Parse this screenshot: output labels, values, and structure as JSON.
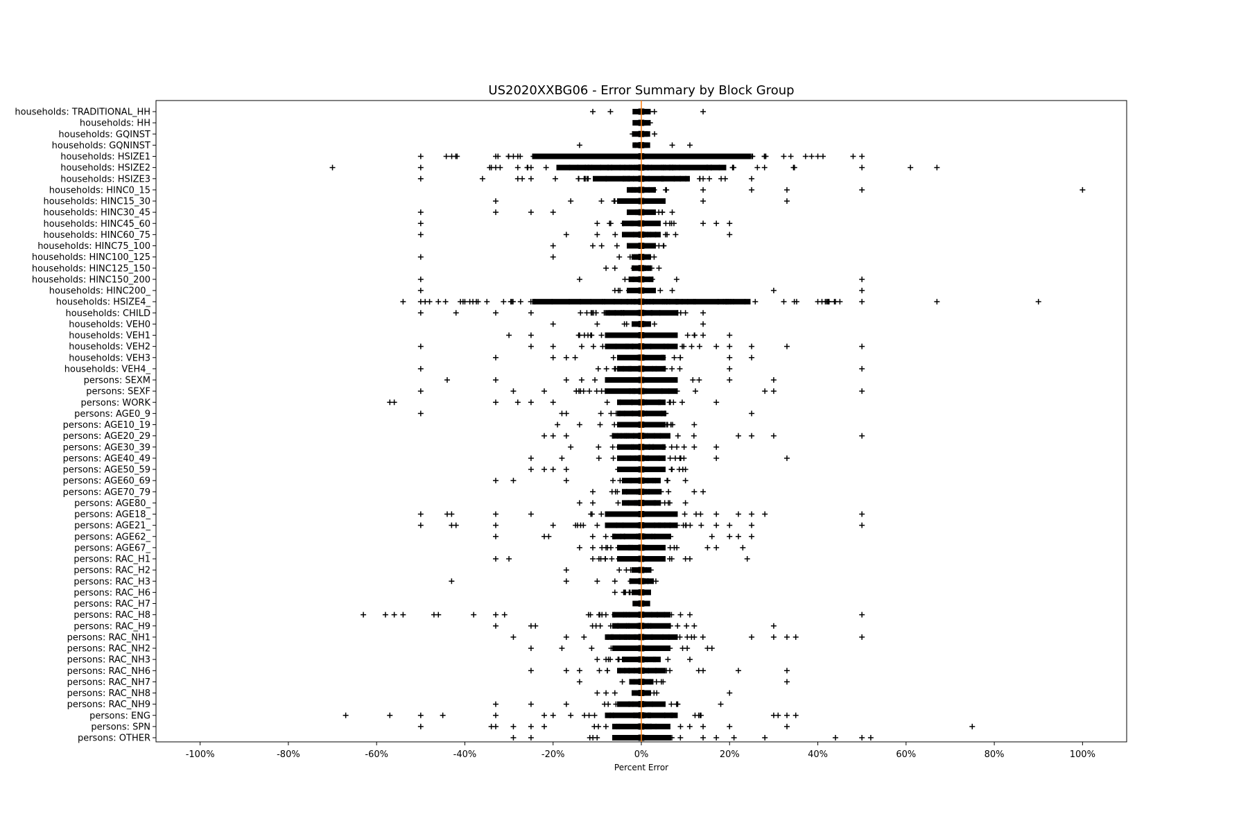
{
  "chart_data": {
    "type": "boxplot",
    "title": "US2020XXBG06 - Error Summary by Block Group",
    "xlabel": "Percent Error",
    "ylabel": "",
    "xlim": [
      -110,
      110
    ],
    "x_ticks": [
      -100,
      -80,
      -60,
      -40,
      -20,
      0,
      20,
      40,
      60,
      80,
      100
    ],
    "x_tick_labels": [
      "-100%",
      "-80%",
      "-60%",
      "-40%",
      "-20%",
      "0%",
      "20%",
      "40%",
      "60%",
      "80%",
      "100%"
    ],
    "grid": false,
    "median_color": "#ff7f0e",
    "categories": [
      {
        "label": "households: TRADITIONAL_HH",
        "spread": 3,
        "outliers": [
          -11,
          -7,
          2,
          14
        ]
      },
      {
        "label": "households: HH",
        "spread": 1,
        "outliers": [
          1,
          2
        ]
      },
      {
        "label": "households: GQINST",
        "spread": 2,
        "outliers": [
          -2,
          3
        ]
      },
      {
        "label": "households: GQNINST",
        "spread": 3,
        "outliers": [
          -14,
          7,
          11
        ]
      },
      {
        "label": "households: HSIZE1",
        "spread": 45,
        "outliers": [
          -50,
          -33,
          -29,
          -28,
          -20,
          -18,
          -16,
          40,
          48,
          50
        ]
      },
      {
        "label": "households: HSIZE2",
        "spread": 35,
        "outliers": [
          -70,
          -50,
          -33,
          -32,
          -28,
          -25,
          50,
          61,
          67
        ]
      },
      {
        "label": "households: HSIZE3",
        "spread": 20,
        "outliers": [
          -50,
          -36,
          -28,
          -27,
          -25,
          14,
          19,
          25
        ]
      },
      {
        "label": "households: HINC0_15",
        "spread": 6,
        "outliers": [
          14,
          25,
          33,
          50,
          100
        ]
      },
      {
        "label": "households: HINC15_30",
        "spread": 10,
        "outliers": [
          -33,
          -16,
          14,
          33
        ]
      },
      {
        "label": "households: HINC30_45",
        "spread": 6,
        "outliers": [
          -50,
          -33,
          -25,
          -20,
          7
        ]
      },
      {
        "label": "households: HINC45_60",
        "spread": 8,
        "outliers": [
          -50,
          -10,
          14,
          17,
          20
        ]
      },
      {
        "label": "households: HINC60_75",
        "spread": 8,
        "outliers": [
          -50,
          -17,
          -10,
          20
        ]
      },
      {
        "label": "households: HINC75_100",
        "spread": 6,
        "outliers": [
          -20,
          -11,
          -9,
          5
        ]
      },
      {
        "label": "households: HINC100_125",
        "spread": 4,
        "outliers": [
          -50,
          -20,
          -5
        ]
      },
      {
        "label": "households: HINC125_150",
        "spread": 4,
        "outliers": [
          -8,
          -6,
          4
        ]
      },
      {
        "label": "households: HINC150_200",
        "spread": 5,
        "outliers": [
          -50,
          -14,
          8,
          50
        ]
      },
      {
        "label": "households: HINC200_",
        "spread": 6,
        "outliers": [
          -50,
          -6,
          7,
          30,
          50
        ]
      },
      {
        "label": "households: HSIZE4_",
        "spread": 45,
        "outliers": [
          -54,
          -50,
          -49,
          -48,
          -46,
          -41,
          -40,
          -37,
          -35,
          40,
          42,
          45,
          50,
          67,
          90
        ]
      },
      {
        "label": "households: CHILD",
        "spread": 15,
        "outliers": [
          -50,
          -42,
          -33,
          -25,
          10,
          14
        ]
      },
      {
        "label": "households: VEH0",
        "spread": 4,
        "outliers": [
          -20,
          -10,
          14
        ]
      },
      {
        "label": "households: VEH1",
        "spread": 15,
        "outliers": [
          -30,
          -25,
          -14,
          12,
          14,
          20
        ]
      },
      {
        "label": "households: VEH2",
        "spread": 15,
        "outliers": [
          -50,
          -25,
          -20,
          17,
          20,
          25,
          33,
          50
        ]
      },
      {
        "label": "households: VEH3",
        "spread": 10,
        "outliers": [
          -33,
          -20,
          -17,
          -15,
          20,
          25
        ]
      },
      {
        "label": "households: VEH4_",
        "spread": 10,
        "outliers": [
          -50,
          20,
          50
        ]
      },
      {
        "label": "persons: SEXM",
        "spread": 15,
        "outliers": [
          -44,
          -33,
          -17,
          20,
          30
        ]
      },
      {
        "label": "persons: SEXF",
        "spread": 15,
        "outliers": [
          -50,
          -29,
          -22,
          28,
          30,
          50
        ]
      },
      {
        "label": "persons: WORK",
        "spread": 10,
        "outliers": [
          -57,
          -56,
          -33,
          -28,
          -25,
          -20,
          17
        ]
      },
      {
        "label": "persons: AGE0_9",
        "spread": 10,
        "outliers": [
          -50,
          -18,
          -17,
          25
        ]
      },
      {
        "label": "persons: AGE10_19",
        "spread": 10,
        "outliers": [
          -19,
          -14,
          12
        ]
      },
      {
        "label": "persons: AGE20_29",
        "spread": 12,
        "outliers": [
          -22,
          -20,
          -17,
          22,
          25,
          30,
          50
        ]
      },
      {
        "label": "persons: AGE30_39",
        "spread": 10,
        "outliers": [
          -16,
          12,
          17
        ]
      },
      {
        "label": "persons: AGE40_49",
        "spread": 10,
        "outliers": [
          -25,
          -18,
          17,
          33
        ]
      },
      {
        "label": "persons: AGE50_59",
        "spread": 10,
        "outliers": [
          -25,
          -22,
          -20,
          -17,
          10
        ]
      },
      {
        "label": "persons: AGE60_69",
        "spread": 8,
        "outliers": [
          -33,
          -29,
          -17,
          10
        ]
      },
      {
        "label": "persons: AGE70_79",
        "spread": 8,
        "outliers": [
          -11,
          12,
          14
        ]
      },
      {
        "label": "persons: AGE80_",
        "spread": 8,
        "outliers": [
          -14,
          -11,
          10
        ]
      },
      {
        "label": "persons: AGE18_",
        "spread": 15,
        "outliers": [
          -50,
          -44,
          -43,
          -33,
          -25,
          17,
          22,
          25,
          28,
          50
        ]
      },
      {
        "label": "persons: AGE21_",
        "spread": 15,
        "outliers": [
          -50,
          -43,
          -42,
          -33,
          -20,
          17,
          20,
          25,
          50
        ]
      },
      {
        "label": "persons: AGE62_",
        "spread": 12,
        "outliers": [
          -33,
          -22,
          -21,
          16,
          20,
          22,
          25
        ]
      },
      {
        "label": "persons: AGE67_",
        "spread": 10,
        "outliers": [
          -14,
          -11,
          -8,
          15,
          17,
          23
        ]
      },
      {
        "label": "persons: RAC_H1",
        "spread": 10,
        "outliers": [
          -33,
          -30,
          -11,
          10,
          11,
          24
        ]
      },
      {
        "label": "persons: RAC_H2",
        "spread": 4,
        "outliers": [
          -17,
          -5
        ]
      },
      {
        "label": "persons: RAC_H3",
        "spread": 5,
        "outliers": [
          -43,
          -17,
          -10,
          -6
        ]
      },
      {
        "label": "persons: RAC_H6",
        "spread": 4,
        "outliers": [
          -6,
          -4
        ]
      },
      {
        "label": "persons: RAC_H7",
        "spread": 2,
        "outliers": [
          -1,
          1
        ]
      },
      {
        "label": "persons: RAC_H8",
        "spread": 12,
        "outliers": [
          -63,
          -58,
          -56,
          -54,
          -47,
          -46,
          -38,
          -33,
          -31,
          11,
          50
        ]
      },
      {
        "label": "persons: RAC_H9",
        "spread": 12,
        "outliers": [
          -33,
          -25,
          -24,
          12,
          30
        ]
      },
      {
        "label": "persons: RAC_NH1",
        "spread": 15,
        "outliers": [
          -29,
          -17,
          25,
          30,
          33,
          35,
          50
        ]
      },
      {
        "label": "persons: RAC_NH2",
        "spread": 12,
        "outliers": [
          -25,
          -18,
          15,
          16
        ]
      },
      {
        "label": "persons: RAC_NH3",
        "spread": 8,
        "outliers": [
          -10,
          -8,
          11
        ]
      },
      {
        "label": "persons: RAC_NH6",
        "spread": 10,
        "outliers": [
          -25,
          -17,
          -14,
          13,
          14,
          22,
          33
        ]
      },
      {
        "label": "persons: RAC_NH7",
        "spread": 5,
        "outliers": [
          -14,
          33
        ]
      },
      {
        "label": "persons: RAC_NH8",
        "spread": 4,
        "outliers": [
          -10,
          -8,
          -6,
          20
        ]
      },
      {
        "label": "persons: RAC_NH9",
        "spread": 10,
        "outliers": [
          -33,
          -25,
          -17,
          8,
          18
        ]
      },
      {
        "label": "persons: ENG",
        "spread": 15,
        "outliers": [
          -67,
          -57,
          -50,
          -45,
          -33,
          -22,
          -20,
          -16,
          30,
          31,
          33,
          35
        ]
      },
      {
        "label": "persons: SPN",
        "spread": 12,
        "outliers": [
          -50,
          -34,
          -33,
          -29,
          -25,
          -22,
          14,
          20,
          33,
          75
        ]
      },
      {
        "label": "persons: OTHER",
        "spread": 12,
        "outliers": [
          -29,
          -25,
          14,
          17,
          21,
          28,
          44,
          50,
          52
        ]
      }
    ]
  }
}
